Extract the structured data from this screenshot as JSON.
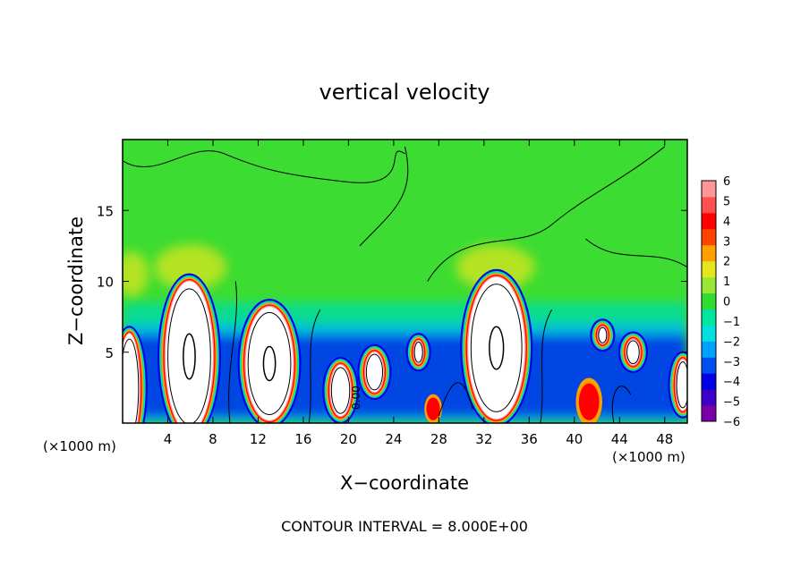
{
  "chart_data": {
    "type": "heatmap",
    "title": "vertical velocity",
    "xlabel": "X−coordinate",
    "ylabel": "Z−coordinate",
    "x_unit_left": "(×1000 m)",
    "x_unit_right": "(×1000 m)",
    "footer": "CONTOUR INTERVAL = 8.000E+00",
    "xlim": [
      0,
      50
    ],
    "ylim": [
      0,
      20
    ],
    "x_ticks": [
      "4",
      "8",
      "12",
      "16",
      "20",
      "24",
      "28",
      "32",
      "36",
      "40",
      "44",
      "48"
    ],
    "y_ticks": [
      "5",
      "10",
      "15"
    ],
    "contour_label": "0.00",
    "colorbar": {
      "range": [
        -6,
        6
      ],
      "labels": [
        "6",
        "5",
        "4",
        "3",
        "2",
        "1",
        "0",
        "−1",
        "−2",
        "−3",
        "−4",
        "−5",
        "−6"
      ],
      "colors": [
        "#7a00a8",
        "#3c00c8",
        "#0000e6",
        "#0050f0",
        "#00a0ff",
        "#00e0e0",
        "#00e6a0",
        "#32dc32",
        "#96e632",
        "#e6e61e",
        "#ffa000",
        "#ff4400",
        "#ff0000",
        "#ff5050",
        "#ff9696"
      ]
    },
    "features": [
      {
        "type": "updraft",
        "x": 0.6,
        "z": 2.5,
        "rx": 0.9,
        "rz": 3.8
      },
      {
        "type": "updraft",
        "x": 5.9,
        "z": 4.7,
        "rx": 2.1,
        "rz": 5.3
      },
      {
        "type": "updraft",
        "x": 13.0,
        "z": 4.2,
        "rx": 2.1,
        "rz": 4.0
      },
      {
        "type": "updraft",
        "x": 19.3,
        "z": 2.3,
        "rx": 0.9,
        "rz": 1.8
      },
      {
        "type": "updraft",
        "x": 22.3,
        "z": 3.6,
        "rx": 0.8,
        "rz": 1.4
      },
      {
        "type": "updraft",
        "x": 26.2,
        "z": 5.0,
        "rx": 0.4,
        "rz": 0.8
      },
      {
        "type": "updraft",
        "x": 33.1,
        "z": 5.3,
        "rx": 2.5,
        "rz": 5.0
      },
      {
        "type": "updraft",
        "x": 42.5,
        "z": 6.2,
        "rx": 0.4,
        "rz": 0.6
      },
      {
        "type": "updraft",
        "x": 45.2,
        "z": 5.0,
        "rx": 0.6,
        "rz": 0.9
      },
      {
        "type": "updraft",
        "x": 49.6,
        "z": 2.7,
        "rx": 0.6,
        "rz": 1.8
      },
      {
        "type": "weak_updraft",
        "x": 41.3,
        "z": 1.5,
        "rx": 0.9,
        "rz": 1.3
      },
      {
        "type": "weak_updraft",
        "x": 27.5,
        "z": 1.0,
        "rx": 0.6,
        "rz": 0.8
      }
    ]
  }
}
